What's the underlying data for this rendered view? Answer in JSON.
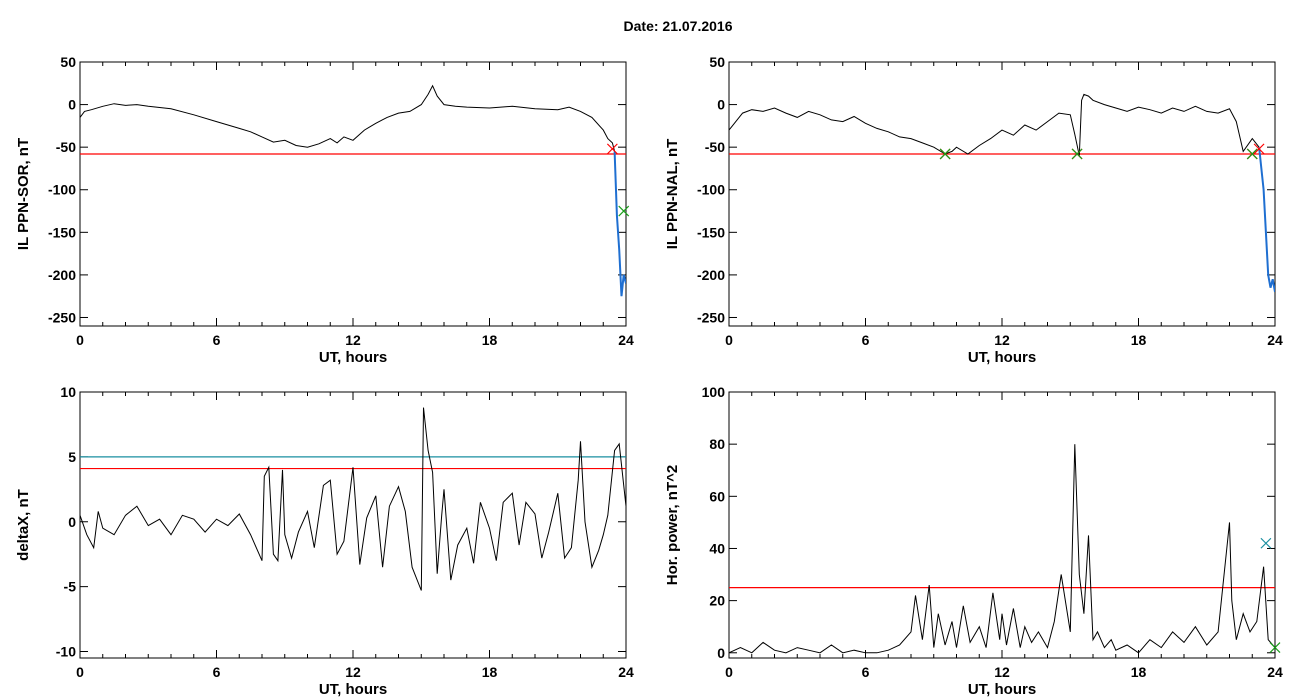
{
  "header": {
    "title": "Date:  21.07.2016"
  },
  "colors": {
    "line": "#000000",
    "threshold": "#ff0000",
    "secondary_threshold": "#1a8fa0",
    "event_trace": "#1f6fd1",
    "marker_red": "#ff0000",
    "marker_green": "#1a9e1a",
    "marker_blue": "#1a8fa0"
  },
  "chart_data": [
    {
      "id": "sor",
      "type": "line",
      "xlabel": "UT, hours",
      "ylabel": "IL PPN-SOR, nT",
      "xlim": [
        0,
        24
      ],
      "ylim": [
        -260,
        50
      ],
      "xticks": [
        0,
        6,
        12,
        18,
        24
      ],
      "yticks": [
        50,
        0,
        -50,
        -100,
        -150,
        -200,
        -250
      ],
      "grid": false,
      "threshold": -58,
      "series": [
        {
          "x": [
            0,
            0.2,
            0.5,
            1,
            1.5,
            2,
            2.5,
            3,
            4,
            5,
            6,
            7,
            7.5,
            8,
            8.5,
            9,
            9.5,
            10,
            10.5,
            11,
            11.3,
            11.6,
            12,
            12.5,
            13,
            13.5,
            14,
            14.5,
            15,
            15.3,
            15.5,
            15.7,
            16,
            16.5,
            17,
            18,
            19,
            20,
            21,
            21.5,
            22,
            22.5,
            23,
            23.2,
            23.4,
            23.5
          ],
          "y": [
            -15,
            -8,
            -6,
            -2,
            1,
            -1,
            0,
            -2,
            -5,
            -12,
            -20,
            -28,
            -32,
            -38,
            -44,
            -42,
            -48,
            -50,
            -46,
            -40,
            -45,
            -38,
            -42,
            -30,
            -22,
            -15,
            -10,
            -8,
            0,
            12,
            22,
            10,
            0,
            -2,
            -3,
            -4,
            -2,
            -5,
            -6,
            -3,
            -8,
            -15,
            -30,
            -40,
            -45,
            -55
          ]
        },
        {
          "role": "event",
          "x": [
            23.5,
            23.6,
            23.7,
            23.8,
            23.9,
            24
          ],
          "y": [
            -55,
            -130,
            -170,
            -225,
            -200,
            -210
          ]
        }
      ],
      "markers": [
        {
          "x": 23.4,
          "y": -52,
          "color": "red"
        },
        {
          "x": 23.9,
          "y": -125,
          "color": "green"
        }
      ]
    },
    {
      "id": "nal",
      "type": "line",
      "xlabel": "UT, hours",
      "ylabel": "IL PPN-NAL, nT",
      "xlim": [
        0,
        24
      ],
      "ylim": [
        -260,
        50
      ],
      "xticks": [
        0,
        6,
        12,
        18,
        24
      ],
      "yticks": [
        50,
        0,
        -50,
        -100,
        -150,
        -200,
        -250
      ],
      "grid": false,
      "threshold": -58,
      "series": [
        {
          "x": [
            0,
            0.3,
            0.6,
            1,
            1.5,
            2,
            2.5,
            3,
            3.5,
            4,
            4.5,
            5,
            5.5,
            6,
            6.5,
            7,
            7.5,
            8,
            8.5,
            9,
            9.5,
            9.8,
            10,
            10.5,
            11,
            11.5,
            12,
            12.5,
            13,
            13.5,
            14,
            14.5,
            15,
            15.2,
            15.4,
            15.5,
            15.6,
            15.8,
            16,
            16.5,
            17,
            17.5,
            18,
            18.5,
            19,
            19.5,
            20,
            20.5,
            21,
            21.5,
            22,
            22.3,
            22.6,
            23,
            23.3
          ],
          "y": [
            -30,
            -20,
            -10,
            -6,
            -8,
            -4,
            -10,
            -15,
            -8,
            -12,
            -18,
            -20,
            -14,
            -22,
            -28,
            -32,
            -38,
            -40,
            -45,
            -50,
            -58,
            -55,
            -50,
            -58,
            -48,
            -40,
            -30,
            -36,
            -24,
            -30,
            -20,
            -10,
            -12,
            -35,
            -60,
            5,
            12,
            10,
            5,
            0,
            -4,
            -8,
            -3,
            -6,
            -10,
            -4,
            -8,
            -2,
            -8,
            -10,
            -5,
            -20,
            -55,
            -40,
            -50
          ]
        },
        {
          "role": "event",
          "x": [
            23.3,
            23.5,
            23.6,
            23.7,
            23.8,
            23.9,
            24
          ],
          "y": [
            -50,
            -100,
            -150,
            -200,
            -215,
            -205,
            -220
          ]
        }
      ],
      "markers": [
        {
          "x": 9.5,
          "y": -58,
          "color": "red"
        },
        {
          "x": 9.5,
          "y": -58,
          "color": "green"
        },
        {
          "x": 15.3,
          "y": -58,
          "color": "red"
        },
        {
          "x": 15.3,
          "y": -58,
          "color": "green"
        },
        {
          "x": 23.0,
          "y": -58,
          "color": "red"
        },
        {
          "x": 23.0,
          "y": -58,
          "color": "green"
        },
        {
          "x": 23.3,
          "y": -52,
          "color": "red"
        }
      ]
    },
    {
      "id": "deltax",
      "type": "line",
      "xlabel": "UT, hours",
      "ylabel": "deltaX, nT",
      "xlim": [
        0,
        24
      ],
      "ylim": [
        -10.5,
        10
      ],
      "xticks": [
        0,
        6,
        12,
        18,
        24
      ],
      "yticks": [
        10,
        5,
        0,
        -5,
        -10
      ],
      "grid": false,
      "thresholds": [
        {
          "value": 4.1,
          "color": "red"
        },
        {
          "value": 5.0,
          "color": "teal"
        }
      ],
      "series": [
        {
          "x": [
            0,
            0.3,
            0.6,
            0.8,
            1,
            1.5,
            2,
            2.5,
            3,
            3.5,
            4,
            4.5,
            5,
            5.5,
            6,
            6.5,
            7,
            7.5,
            8,
            8.1,
            8.3,
            8.5,
            8.7,
            8.9,
            9,
            9.3,
            9.6,
            10,
            10.3,
            10.7,
            11,
            11.3,
            11.6,
            12,
            12.3,
            12.6,
            13,
            13.3,
            13.6,
            14,
            14.3,
            14.6,
            15,
            15.1,
            15.3,
            15.5,
            15.7,
            15.9,
            16,
            16.3,
            16.6,
            17,
            17.3,
            17.6,
            18,
            18.3,
            18.6,
            19,
            19.3,
            19.6,
            20,
            20.3,
            20.6,
            21,
            21.3,
            21.6,
            21.9,
            22,
            22.2,
            22.5,
            22.8,
            23,
            23.2,
            23.5,
            23.7,
            24
          ],
          "y": [
            0.5,
            -1,
            -2,
            0.8,
            -0.5,
            -1,
            0.5,
            1.2,
            -0.3,
            0.2,
            -1,
            0.5,
            0.2,
            -0.8,
            0.2,
            -0.3,
            0.6,
            -1,
            -3,
            3.5,
            4.2,
            -2.5,
            -3,
            4,
            -1,
            -2.8,
            -0.8,
            0.8,
            -2,
            2.8,
            3.2,
            -2.5,
            -1.5,
            4.2,
            -3.3,
            0.3,
            2,
            -3.5,
            1.2,
            2.7,
            0.8,
            -3.5,
            -5.3,
            8.8,
            5.5,
            3.8,
            -4,
            0.5,
            2.5,
            -4.5,
            -1.8,
            -0.5,
            -3.2,
            1.5,
            -0.5,
            -3,
            1.5,
            2.2,
            -1.8,
            1.5,
            0.6,
            -2.8,
            -0.8,
            2.2,
            -2.8,
            -2,
            3.2,
            6.2,
            0,
            -3.5,
            -2.2,
            -1,
            0.5,
            5.5,
            6,
            1.2
          ]
        }
      ]
    },
    {
      "id": "power",
      "type": "line",
      "xlabel": "UT, hours",
      "ylabel": "Hor. power, nT^2",
      "xlim": [
        0,
        24
      ],
      "ylim": [
        -2,
        100
      ],
      "xticks": [
        0,
        6,
        12,
        18,
        24
      ],
      "yticks": [
        100,
        80,
        60,
        40,
        20,
        0
      ],
      "grid": false,
      "threshold": 25,
      "series": [
        {
          "x": [
            0,
            0.5,
            1,
            1.5,
            2,
            2.5,
            3,
            3.5,
            4,
            4.5,
            5,
            5.5,
            6,
            6.5,
            7,
            7.5,
            8,
            8.2,
            8.5,
            8.8,
            9,
            9.2,
            9.5,
            9.8,
            10,
            10.3,
            10.6,
            11,
            11.3,
            11.6,
            11.9,
            12,
            12.2,
            12.5,
            12.8,
            13,
            13.3,
            13.6,
            14,
            14.3,
            14.6,
            15,
            15.2,
            15.4,
            15.6,
            15.8,
            16,
            16.2,
            16.5,
            16.8,
            17,
            17.5,
            18,
            18.5,
            19,
            19.5,
            20,
            20.5,
            21,
            21.5,
            22,
            22.1,
            22.3,
            22.6,
            22.9,
            23.2,
            23.5,
            23.7,
            24
          ],
          "y": [
            0,
            2,
            0,
            4,
            1,
            0,
            2,
            1,
            0,
            3,
            0,
            1,
            0,
            0,
            1,
            3,
            8,
            22,
            5,
            26,
            2,
            15,
            3,
            12,
            2,
            18,
            4,
            10,
            2,
            23,
            5,
            15,
            3,
            17,
            2,
            10,
            4,
            8,
            2,
            12,
            30,
            8,
            80,
            30,
            15,
            45,
            5,
            8,
            2,
            5,
            1,
            3,
            0,
            5,
            2,
            8,
            4,
            10,
            3,
            8,
            50,
            20,
            5,
            15,
            8,
            12,
            33,
            5,
            2
          ]
        }
      ],
      "markers": [
        {
          "x": 23.6,
          "y": 42,
          "color": "blue"
        },
        {
          "x": 24,
          "y": 2,
          "color": "green"
        }
      ]
    }
  ]
}
